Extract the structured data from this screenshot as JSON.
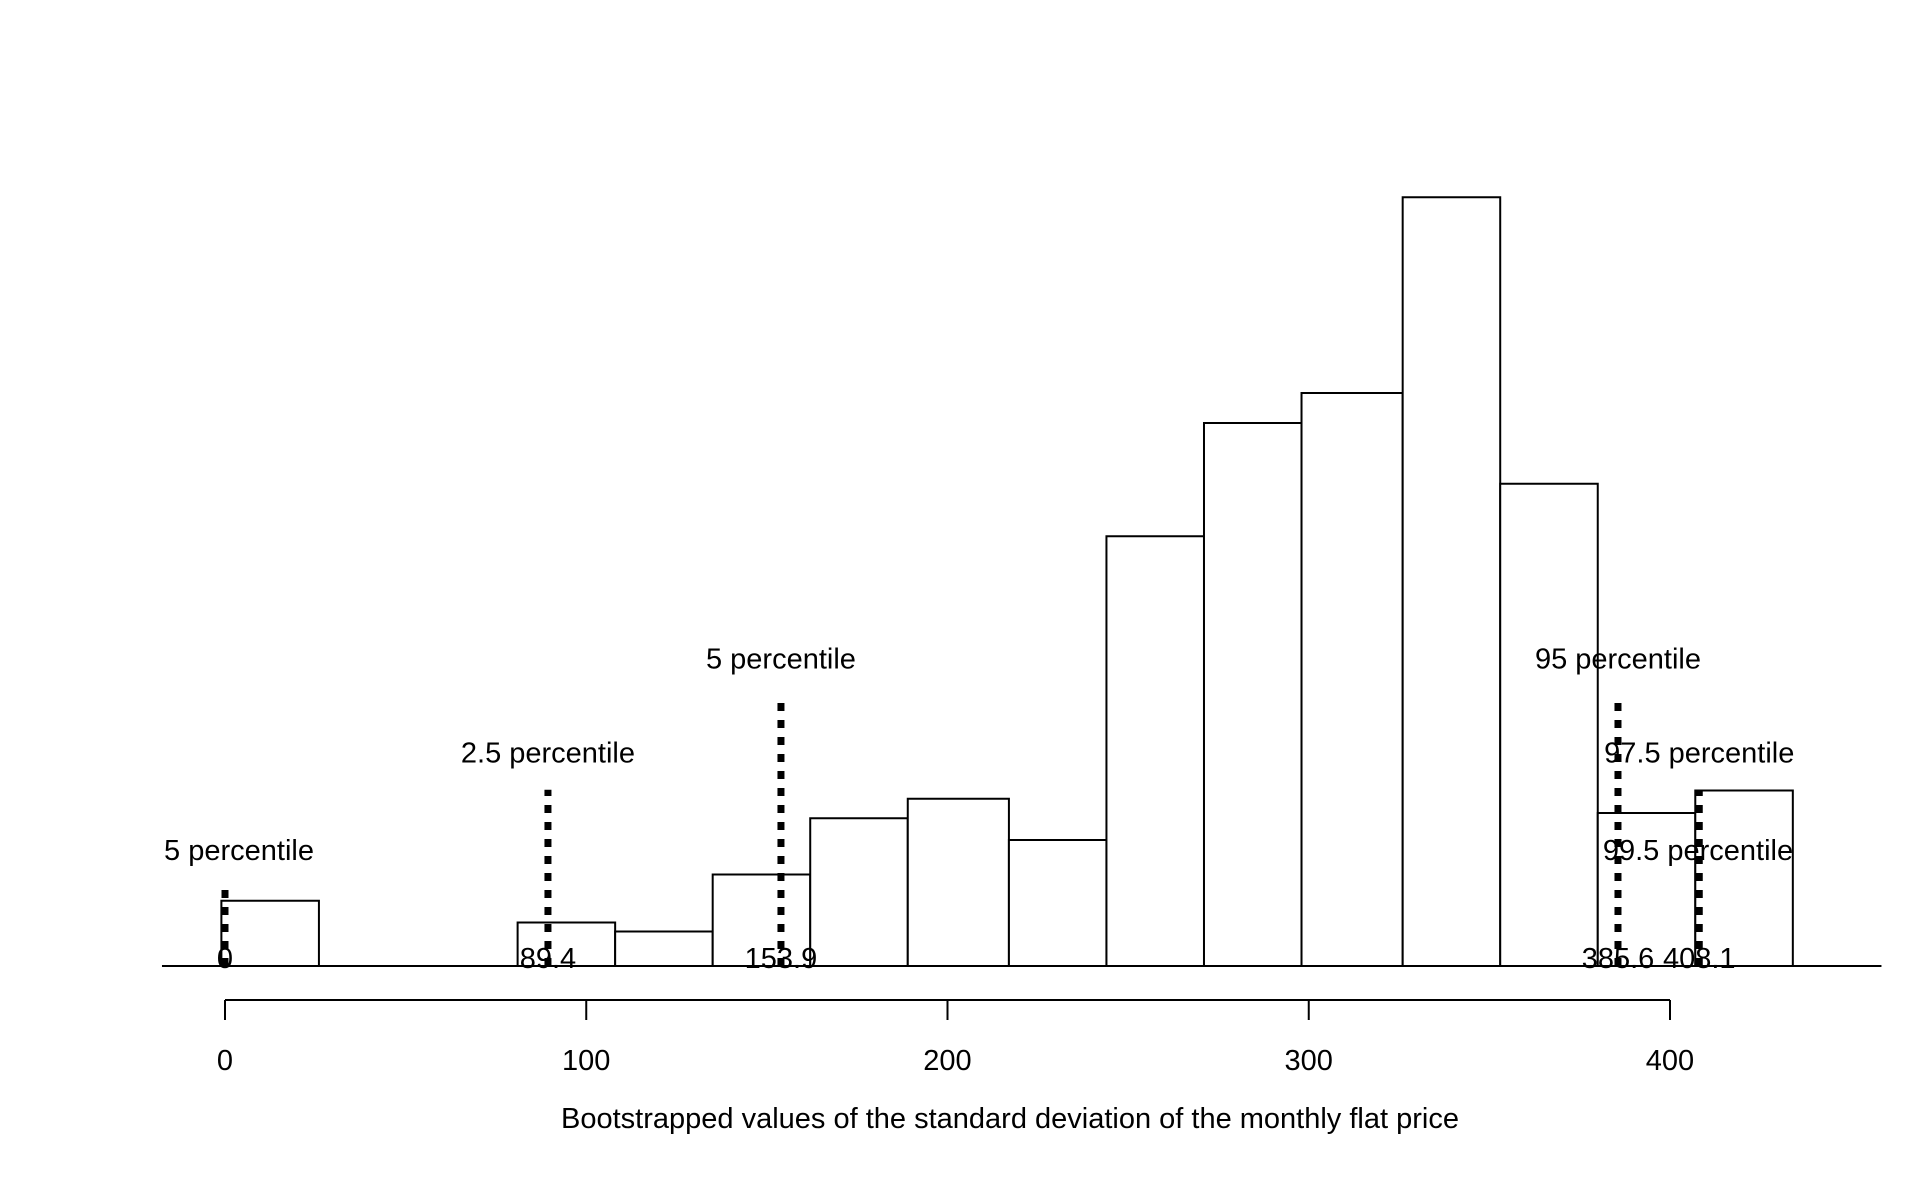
{
  "chart_data": {
    "type": "bar",
    "xlabel": "Bootstrapped values of the standard deviation of the monthly flat price",
    "ylabel": "",
    "xlim": [
      -18,
      453
    ],
    "ylim": [
      0,
      100
    ],
    "x_ticks": [
      0,
      100,
      200,
      300,
      400
    ],
    "bins": [
      {
        "x0": -1,
        "x1": 26,
        "value": 8.7
      },
      {
        "x0": 26,
        "x1": 54,
        "value": 0
      },
      {
        "x0": 54,
        "x1": 81,
        "value": 0
      },
      {
        "x0": 81,
        "x1": 108,
        "value": 5.8
      },
      {
        "x0": 108,
        "x1": 135,
        "value": 4.6
      },
      {
        "x0": 135,
        "x1": 162,
        "value": 12.2
      },
      {
        "x0": 162,
        "x1": 189,
        "value": 19.7
      },
      {
        "x0": 189,
        "x1": 217,
        "value": 22.3
      },
      {
        "x0": 217,
        "x1": 244,
        "value": 16.8
      },
      {
        "x0": 244,
        "x1": 271,
        "value": 57.3
      },
      {
        "x0": 271,
        "x1": 298,
        "value": 72.4
      },
      {
        "x0": 298,
        "x1": 326,
        "value": 76.4
      },
      {
        "x0": 326,
        "x1": 353,
        "value": 102.5
      },
      {
        "x0": 353,
        "x1": 380,
        "value": 64.3
      },
      {
        "x0": 380,
        "x1": 407,
        "value": 20.4
      },
      {
        "x0": 407,
        "x1": 434,
        "value": 23.4
      }
    ],
    "percentiles": [
      {
        "label": "5 percentile",
        "x": 0,
        "value_label": "0",
        "height": 10.5,
        "label_height": 15.5
      },
      {
        "label": "2.5 percentile",
        "x": 89.4,
        "value_label": "89.4",
        "height": 23.5,
        "label_height": 28.5
      },
      {
        "label": "5 percentile",
        "x": 153.9,
        "value_label": "153.9",
        "height": 36,
        "label_height": 41
      },
      {
        "label": "95 percentile",
        "x": 385.6,
        "value_label": "385.6",
        "height": 36,
        "label_height": 41
      },
      {
        "label": "97.5 percentile",
        "x": 408.1,
        "value_label": "408.1",
        "height": 23.5,
        "label_height": 28.5
      },
      {
        "label": "99.5 percentile",
        "x": 385.6,
        "value_label": "",
        "height": 0,
        "label_height": 15.5
      }
    ]
  }
}
